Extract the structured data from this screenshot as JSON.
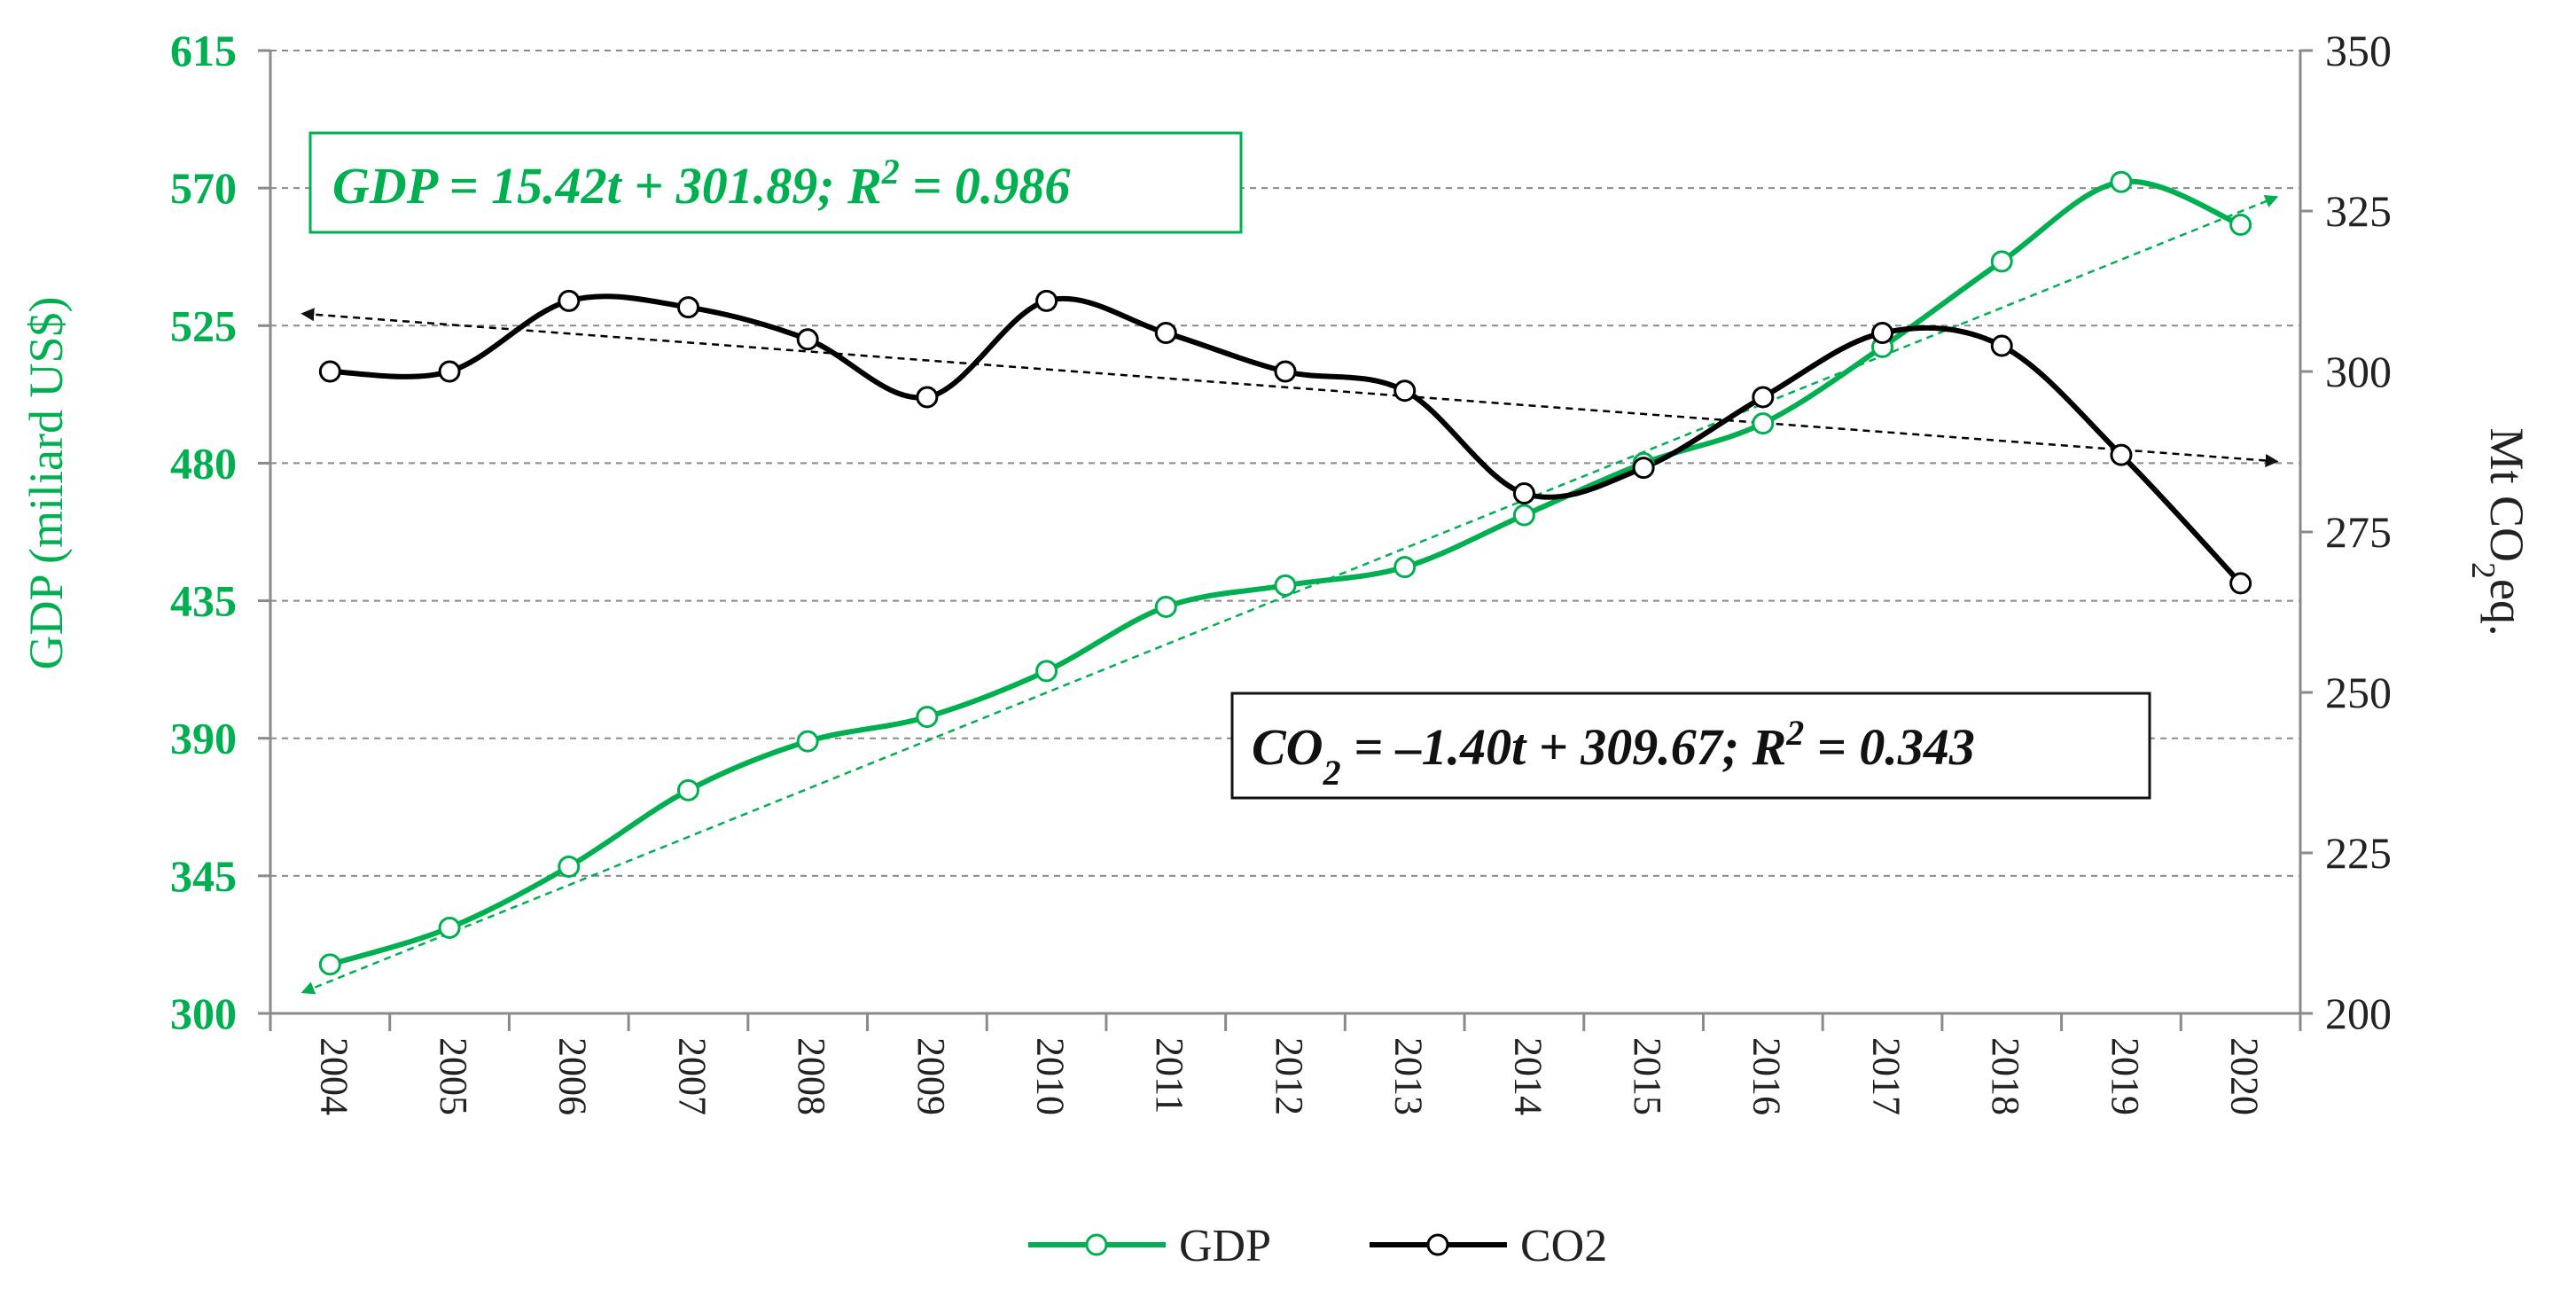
{
  "chart_data": {
    "type": "line",
    "categories": [
      "2004",
      "2005",
      "2006",
      "2007",
      "2008",
      "2009",
      "2010",
      "2011",
      "2012",
      "2013",
      "2014",
      "2015",
      "2016",
      "2017",
      "2018",
      "2019",
      "2020"
    ],
    "series": [
      {
        "name": "GDP",
        "axis": "left",
        "color": "#00b050",
        "values": [
          316,
          328,
          348,
          373,
          389,
          397,
          412,
          433,
          440,
          446,
          463,
          480,
          493,
          518,
          546,
          572,
          558
        ]
      },
      {
        "name": "CO2",
        "axis": "right",
        "color": "#000000",
        "values": [
          300,
          300,
          311,
          310,
          305,
          296,
          311,
          306,
          300,
          297,
          281,
          285,
          296,
          306,
          304,
          287,
          267
        ]
      }
    ],
    "trendlines": [
      {
        "series": "GDP",
        "color": "#00b050",
        "from": [
          2004,
          307
        ],
        "to": [
          2020,
          567
        ],
        "label": "GDP = 15.42t + 301.89; R",
        "r2_sup": "2",
        "r2_value": " = 0.986"
      },
      {
        "series": "CO2",
        "color": "#000000",
        "from": [
          2004,
          309
        ],
        "to": [
          2020,
          286
        ],
        "label_pre": "CO",
        "label_sub": "2",
        "label_mid": " = –1.40t + 309.67; R",
        "r2_sup": "2",
        "r2_value": " = 0.343"
      }
    ],
    "y_left": {
      "label": "GDP (miliard US$)",
      "range": [
        300,
        615
      ],
      "ticks": [
        "615",
        "570",
        "525",
        "480",
        "435",
        "390",
        "345",
        "300"
      ]
    },
    "y_right": {
      "label_pre": "Mt CO",
      "label_sub": "2",
      "label_post": "eq.",
      "range": [
        200,
        350
      ],
      "ticks": [
        "350",
        "325",
        "300",
        "275",
        "250",
        "225",
        "200"
      ]
    },
    "grid": true,
    "legend": {
      "placement": "bottom-center",
      "entries": [
        "GDP",
        "CO2"
      ]
    }
  }
}
